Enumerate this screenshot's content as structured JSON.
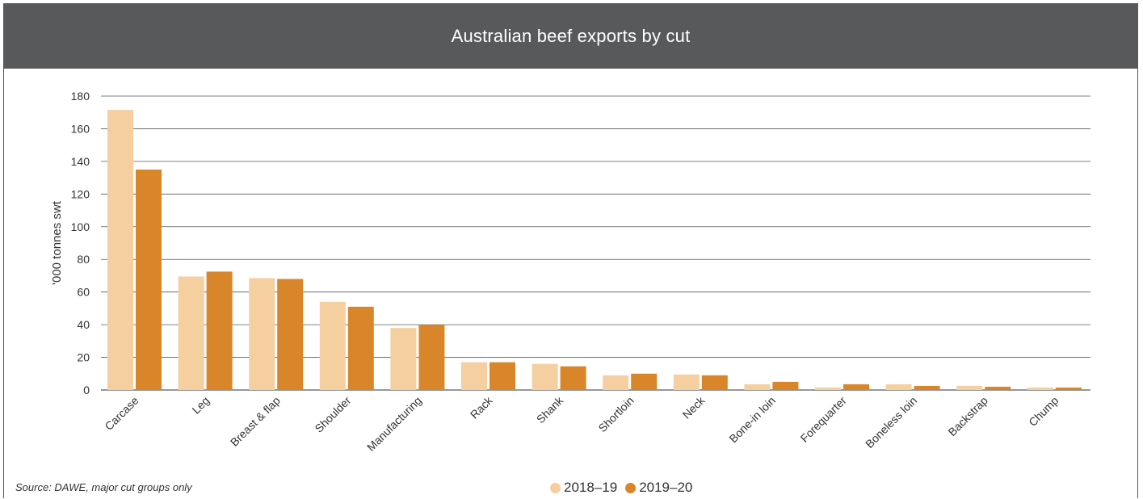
{
  "header": {
    "title": "Australian beef exports by cut"
  },
  "source_note": "Source: DAWE, major cut groups only",
  "colors": {
    "series_2018": "#f5cfa0",
    "series_2019": "#d9862a",
    "gridline": "#58595b",
    "header_bg": "#58595b"
  },
  "chart_data": {
    "type": "bar",
    "title": "Australian beef exports by cut",
    "xlabel": "",
    "ylabel": "'000 tonnes swt",
    "ylim": [
      0,
      180
    ],
    "yticks": [
      0,
      20,
      40,
      60,
      80,
      100,
      120,
      140,
      160,
      180
    ],
    "grid": true,
    "legend_position": "bottom-center",
    "categories": [
      "Carcase",
      "Leg",
      "Breast & flap",
      "Shoulder",
      "Manufacturing",
      "Rack",
      "Shank",
      "Shortloin",
      "Neck",
      "Bone-in loin",
      "Forequarter",
      "Boneless loin",
      "Backstrap",
      "Chump"
    ],
    "series": [
      {
        "name": "2018–19",
        "values": [
          171.5,
          69.5,
          68.5,
          54,
          38,
          17,
          16,
          9,
          9.5,
          3.5,
          1.5,
          3.5,
          2.5,
          1.5
        ]
      },
      {
        "name": "2019–20",
        "values": [
          135,
          72.5,
          68,
          51,
          40,
          17,
          14.5,
          10,
          9,
          5,
          3.5,
          2.5,
          2,
          1.5
        ]
      }
    ]
  }
}
